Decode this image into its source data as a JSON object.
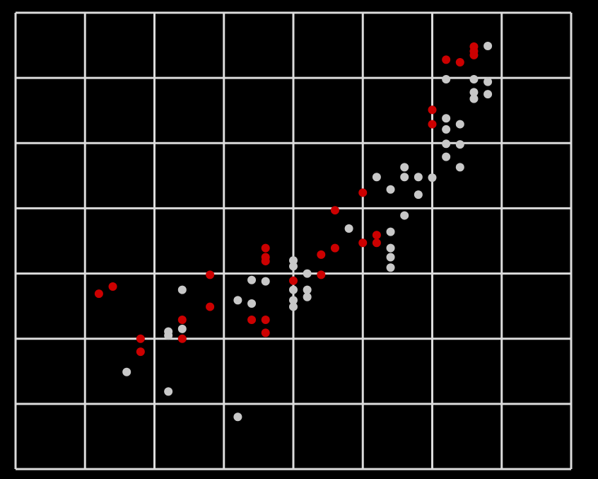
{
  "chart_data": {
    "type": "scatter",
    "xlim": [
      0,
      8
    ],
    "ylim": [
      0,
      7
    ],
    "xticks": [
      0,
      1,
      2,
      3,
      4,
      5,
      6,
      7,
      8
    ],
    "yticks": [
      0,
      1,
      2,
      3,
      4,
      5,
      6,
      7
    ],
    "grid": true,
    "series": [
      {
        "color": "#cc0000",
        "x": [
          6.6,
          6.6,
          6.6,
          6.2,
          6.4,
          6.0,
          6.0,
          5.0,
          4.6,
          3.6,
          3.6,
          3.6,
          4.4,
          4.6,
          5.2,
          5.0,
          5.2,
          2.8,
          4.4,
          4.0,
          2.8,
          1.4,
          1.2,
          2.4,
          2.4,
          1.8,
          1.8,
          3.4,
          3.6,
          3.6
        ],
        "values": [
          6.48,
          6.41,
          6.35,
          6.28,
          6.24,
          5.51,
          5.29,
          4.24,
          3.97,
          3.39,
          3.25,
          3.19,
          3.29,
          3.39,
          3.59,
          3.47,
          3.47,
          2.98,
          2.98,
          2.89,
          2.49,
          2.8,
          2.69,
          2.29,
          2.0,
          2.0,
          1.8,
          2.29,
          2.29,
          2.09
        ]
      },
      {
        "color": "#c8c8c8",
        "x": [
          6.8,
          6.2,
          6.6,
          6.8,
          6.6,
          6.6,
          6.8,
          6.2,
          6.4,
          6.2,
          6.2,
          6.4,
          6.2,
          6.4,
          5.6,
          5.2,
          5.6,
          5.8,
          6.0,
          5.4,
          5.8,
          5.6,
          4.8,
          5.4,
          5.4,
          5.4,
          5.4,
          4.0,
          4.0,
          4.2,
          3.4,
          3.6,
          4.0,
          4.2,
          4.2,
          4.0,
          4.0,
          3.2,
          3.4,
          2.4,
          2.4,
          2.2,
          2.2,
          1.6,
          2.2,
          3.2
        ],
        "values": [
          6.49,
          5.98,
          5.98,
          5.94,
          5.78,
          5.68,
          5.75,
          5.38,
          5.29,
          5.21,
          4.99,
          4.98,
          4.79,
          4.63,
          4.63,
          4.48,
          4.48,
          4.48,
          4.47,
          4.29,
          4.21,
          3.89,
          3.69,
          3.64,
          3.39,
          3.25,
          3.09,
          3.2,
          3.11,
          3.0,
          2.9,
          2.88,
          2.75,
          2.75,
          2.64,
          2.59,
          2.49,
          2.59,
          2.54,
          2.75,
          2.15,
          2.11,
          2.05,
          1.49,
          1.19,
          0.8
        ]
      }
    ]
  }
}
